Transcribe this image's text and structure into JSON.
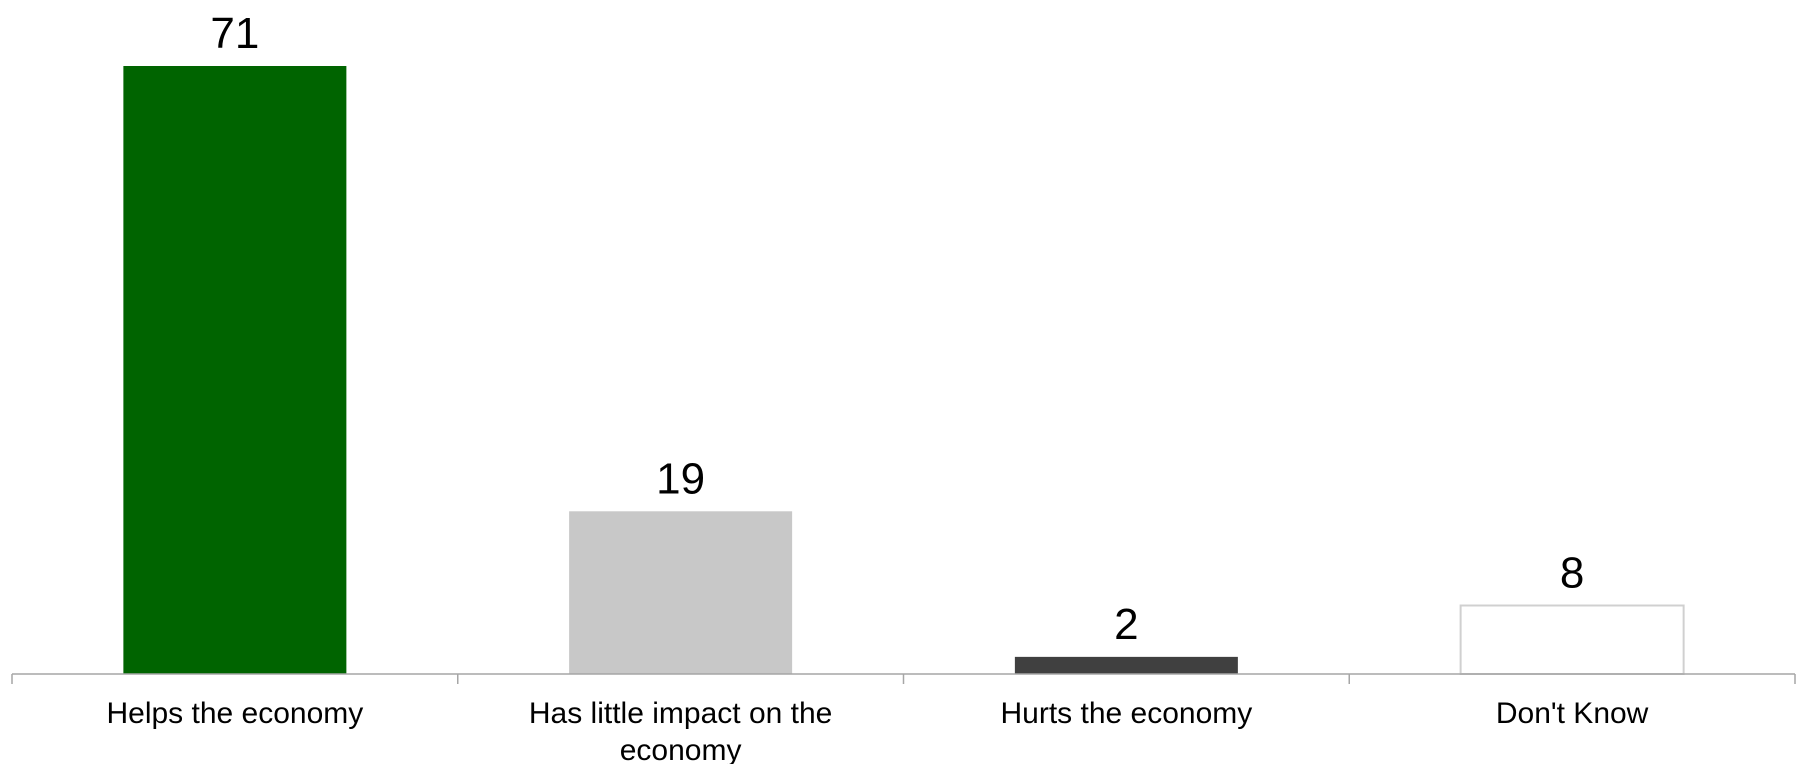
{
  "chart_data": {
    "type": "bar",
    "title": "",
    "xlabel": "",
    "ylabel": "",
    "categories": [
      [
        "Helps the economy"
      ],
      [
        "Has little impact on the",
        "economy"
      ],
      [
        "Hurts the economy"
      ],
      [
        "Don't Know"
      ]
    ],
    "values": [
      71,
      19,
      2,
      8
    ],
    "ylim": [
      0,
      71
    ],
    "grid": false,
    "legend": "none",
    "bar_fill": [
      "#006400",
      "#c8c8c8",
      "#404040",
      "#ffffff"
    ],
    "bar_stroke": [
      "none",
      "none",
      "none",
      "#d0d0d0"
    ],
    "axis_color": "#a6a6a6"
  }
}
